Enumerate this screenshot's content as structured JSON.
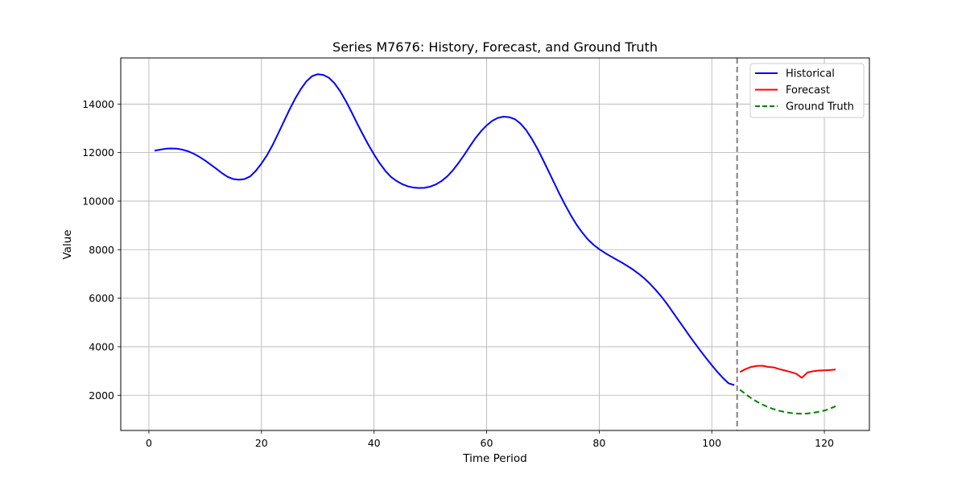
{
  "chart_data": {
    "type": "line",
    "title": "Series M7676: History, Forecast, and Ground Truth",
    "xlabel": "Time Period",
    "ylabel": "Value",
    "xlim": [
      -5,
      128
    ],
    "ylim": [
      550,
      15900
    ],
    "xticks": [
      0,
      20,
      40,
      60,
      80,
      100,
      120
    ],
    "yticks": [
      2000,
      4000,
      6000,
      8000,
      10000,
      12000,
      14000
    ],
    "grid": true,
    "legend_position": "top-right",
    "forecast_start_marker": 104.5,
    "series": [
      {
        "name": "Historical",
        "color": "#0000ff",
        "style": "solid",
        "points": [
          [
            1,
            12080
          ],
          [
            2,
            12120
          ],
          [
            3,
            12160
          ],
          [
            4,
            12170
          ],
          [
            5,
            12160
          ],
          [
            6,
            12120
          ],
          [
            7,
            12050
          ],
          [
            8,
            11950
          ],
          [
            9,
            11820
          ],
          [
            10,
            11670
          ],
          [
            11,
            11500
          ],
          [
            12,
            11330
          ],
          [
            13,
            11150
          ],
          [
            14,
            11000
          ],
          [
            15,
            10910
          ],
          [
            16,
            10880
          ],
          [
            17,
            10910
          ],
          [
            18,
            11020
          ],
          [
            19,
            11250
          ],
          [
            20,
            11550
          ],
          [
            21,
            11900
          ],
          [
            22,
            12320
          ],
          [
            23,
            12800
          ],
          [
            24,
            13290
          ],
          [
            25,
            13780
          ],
          [
            26,
            14230
          ],
          [
            27,
            14620
          ],
          [
            28,
            14940
          ],
          [
            29,
            15150
          ],
          [
            30,
            15230
          ],
          [
            31,
            15200
          ],
          [
            32,
            15080
          ],
          [
            33,
            14850
          ],
          [
            34,
            14520
          ],
          [
            35,
            14120
          ],
          [
            36,
            13670
          ],
          [
            37,
            13200
          ],
          [
            38,
            12750
          ],
          [
            39,
            12320
          ],
          [
            40,
            11920
          ],
          [
            41,
            11560
          ],
          [
            42,
            11250
          ],
          [
            43,
            11000
          ],
          [
            44,
            10830
          ],
          [
            45,
            10700
          ],
          [
            46,
            10610
          ],
          [
            47,
            10560
          ],
          [
            48,
            10540
          ],
          [
            49,
            10550
          ],
          [
            50,
            10600
          ],
          [
            51,
            10690
          ],
          [
            52,
            10830
          ],
          [
            53,
            11020
          ],
          [
            54,
            11270
          ],
          [
            55,
            11570
          ],
          [
            56,
            11900
          ],
          [
            57,
            12250
          ],
          [
            58,
            12590
          ],
          [
            59,
            12880
          ],
          [
            60,
            13120
          ],
          [
            61,
            13310
          ],
          [
            62,
            13430
          ],
          [
            63,
            13480
          ],
          [
            64,
            13460
          ],
          [
            65,
            13380
          ],
          [
            66,
            13200
          ],
          [
            67,
            12930
          ],
          [
            68,
            12580
          ],
          [
            69,
            12170
          ],
          [
            70,
            11710
          ],
          [
            71,
            11230
          ],
          [
            72,
            10750
          ],
          [
            73,
            10270
          ],
          [
            74,
            9820
          ],
          [
            75,
            9400
          ],
          [
            76,
            9020
          ],
          [
            77,
            8700
          ],
          [
            78,
            8420
          ],
          [
            79,
            8200
          ],
          [
            80,
            8020
          ],
          [
            81,
            7870
          ],
          [
            82,
            7730
          ],
          [
            83,
            7600
          ],
          [
            84,
            7470
          ],
          [
            85,
            7330
          ],
          [
            86,
            7180
          ],
          [
            87,
            7010
          ],
          [
            88,
            6820
          ],
          [
            89,
            6600
          ],
          [
            90,
            6350
          ],
          [
            91,
            6080
          ],
          [
            92,
            5780
          ],
          [
            93,
            5450
          ],
          [
            94,
            5120
          ],
          [
            95,
            4790
          ],
          [
            96,
            4460
          ],
          [
            97,
            4140
          ],
          [
            98,
            3830
          ],
          [
            99,
            3530
          ],
          [
            100,
            3240
          ],
          [
            101,
            2960
          ],
          [
            102,
            2710
          ],
          [
            103,
            2490
          ],
          [
            104,
            2420
          ]
        ]
      },
      {
        "name": "Forecast",
        "color": "#ff0000",
        "style": "solid",
        "points": [
          [
            105,
            2960
          ],
          [
            106,
            3080
          ],
          [
            107,
            3170
          ],
          [
            108,
            3210
          ],
          [
            109,
            3220
          ],
          [
            110,
            3170
          ],
          [
            111,
            3150
          ],
          [
            112,
            3080
          ],
          [
            113,
            3020
          ],
          [
            114,
            2960
          ],
          [
            115,
            2890
          ],
          [
            116,
            2720
          ],
          [
            117,
            2940
          ],
          [
            118,
            2990
          ],
          [
            119,
            3020
          ],
          [
            120,
            3030
          ],
          [
            121,
            3040
          ],
          [
            122,
            3060
          ]
        ]
      },
      {
        "name": "Ground Truth",
        "color": "#008000",
        "style": "dashed",
        "points": [
          [
            105,
            2230
          ],
          [
            106,
            2050
          ],
          [
            107,
            1880
          ],
          [
            108,
            1740
          ],
          [
            109,
            1620
          ],
          [
            110,
            1510
          ],
          [
            111,
            1430
          ],
          [
            112,
            1360
          ],
          [
            113,
            1310
          ],
          [
            114,
            1270
          ],
          [
            115,
            1250
          ],
          [
            116,
            1240
          ],
          [
            117,
            1250
          ],
          [
            118,
            1280
          ],
          [
            119,
            1320
          ],
          [
            120,
            1370
          ],
          [
            121,
            1450
          ],
          [
            122,
            1550
          ]
        ]
      }
    ]
  }
}
